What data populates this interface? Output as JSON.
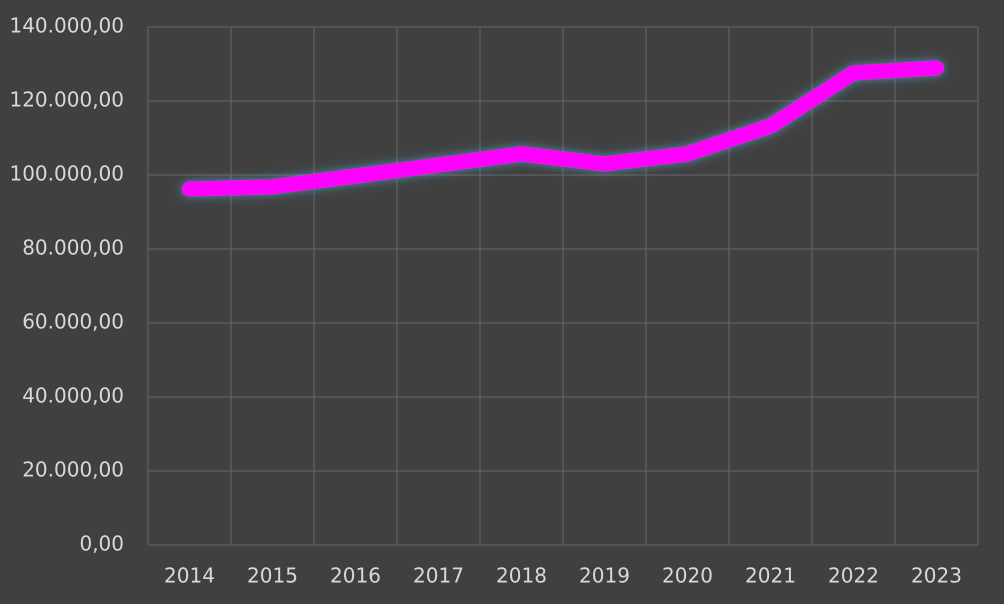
{
  "chart_data": {
    "type": "line",
    "categories": [
      "2014",
      "2015",
      "2016",
      "2017",
      "2018",
      "2019",
      "2020",
      "2021",
      "2022",
      "2023"
    ],
    "values": [
      96200,
      96800,
      99700,
      102700,
      105700,
      103000,
      105700,
      113200,
      127600,
      128900
    ],
    "color": "#ff00ff",
    "ylim": [
      0,
      140000
    ],
    "yticks": [
      {
        "value": 0,
        "label": "0,00"
      },
      {
        "value": 20000,
        "label": "20.000,00"
      },
      {
        "value": 40000,
        "label": "40.000,00"
      },
      {
        "value": 60000,
        "label": "60.000,00"
      },
      {
        "value": 80000,
        "label": "80.000,00"
      },
      {
        "value": 100000,
        "label": "100.000,00"
      },
      {
        "value": 120000,
        "label": "120.000,00"
      },
      {
        "value": 140000,
        "label": "140.000,00"
      }
    ],
    "grid": true
  }
}
